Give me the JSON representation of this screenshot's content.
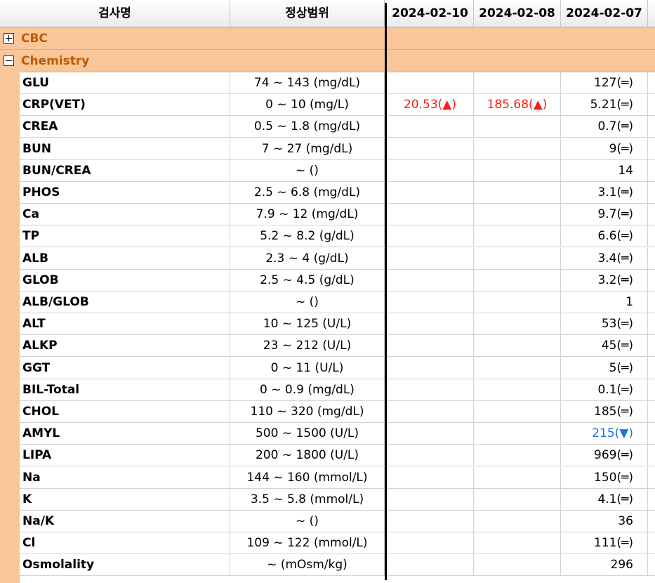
{
  "header": {
    "col_name": "검사명",
    "col_range": "정상범위",
    "dates": [
      "2024-02-10",
      "2024-02-08",
      "2024-02-07"
    ]
  },
  "groups": {
    "cbc": {
      "label": "CBC",
      "expanded": false
    },
    "chemistry": {
      "label": "Chemistry",
      "expanded": true
    }
  },
  "rows": [
    {
      "name": "GLU",
      "range": "74 ~ 143 (mg/dL)",
      "v1": "",
      "v2": "",
      "v3": "127(═)"
    },
    {
      "name": "CRP(VET)",
      "range": "0 ~ 10 (mg/L)",
      "v1": "20.53(▲)",
      "v2": "185.68(▲)",
      "v3": "5.21(═)"
    },
    {
      "name": "CREA",
      "range": "0.5 ~ 1.8 (mg/dL)",
      "v1": "",
      "v2": "",
      "v3": "0.7(═)"
    },
    {
      "name": "BUN",
      "range": "7 ~ 27 (mg/dL)",
      "v1": "",
      "v2": "",
      "v3": "9(═)"
    },
    {
      "name": "BUN/CREA",
      "range": "~ ()",
      "v1": "",
      "v2": "",
      "v3": "14"
    },
    {
      "name": "PHOS",
      "range": "2.5 ~ 6.8 (mg/dL)",
      "v1": "",
      "v2": "",
      "v3": "3.1(═)"
    },
    {
      "name": "Ca",
      "range": "7.9 ~ 12 (mg/dL)",
      "v1": "",
      "v2": "",
      "v3": "9.7(═)"
    },
    {
      "name": "TP",
      "range": "5.2 ~ 8.2 (g/dL)",
      "v1": "",
      "v2": "",
      "v3": "6.6(═)"
    },
    {
      "name": "ALB",
      "range": "2.3 ~ 4 (g/dL)",
      "v1": "",
      "v2": "",
      "v3": "3.4(═)"
    },
    {
      "name": "GLOB",
      "range": "2.5 ~ 4.5 (g/dL)",
      "v1": "",
      "v2": "",
      "v3": "3.2(═)"
    },
    {
      "name": "ALB/GLOB",
      "range": "~ ()",
      "v1": "",
      "v2": "",
      "v3": "1"
    },
    {
      "name": "ALT",
      "range": "10 ~ 125 (U/L)",
      "v1": "",
      "v2": "",
      "v3": "53(═)"
    },
    {
      "name": "ALKP",
      "range": "23 ~ 212 (U/L)",
      "v1": "",
      "v2": "",
      "v3": "45(═)"
    },
    {
      "name": "GGT",
      "range": "0 ~ 11 (U/L)",
      "v1": "",
      "v2": "",
      "v3": "5(═)"
    },
    {
      "name": "BIL-Total",
      "range": "0 ~ 0.9 (mg/dL)",
      "v1": "",
      "v2": "",
      "v3": "0.1(═)"
    },
    {
      "name": "CHOL",
      "range": "110 ~ 320 (mg/dL)",
      "v1": "",
      "v2": "",
      "v3": "185(═)"
    },
    {
      "name": "AMYL",
      "range": "500 ~ 1500 (U/L)",
      "v1": "",
      "v2": "",
      "v3": "215(▼)",
      "v3_low": true
    },
    {
      "name": "LIPA",
      "range": "200 ~ 1800 (U/L)",
      "v1": "",
      "v2": "",
      "v3": "969(═)"
    },
    {
      "name": "Na",
      "range": "144 ~ 160 (mmol/L)",
      "v1": "",
      "v2": "",
      "v3": "150(═)"
    },
    {
      "name": "K",
      "range": "3.5 ~ 5.8 (mmol/L)",
      "v1": "",
      "v2": "",
      "v3": "4.1(═)"
    },
    {
      "name": "Na/K",
      "range": "~ ()",
      "v1": "",
      "v2": "",
      "v3": "36"
    },
    {
      "name": "Cl",
      "range": "109 ~ 122 (mmol/L)",
      "v1": "",
      "v2": "",
      "v3": "111(═)"
    },
    {
      "name": "Osmolality",
      "range": "~ (mOsm/kg)",
      "v1": "",
      "v2": "",
      "v3": "296"
    }
  ],
  "colors": {
    "group_bg": "#f9c69a",
    "group_text": "#c05a00",
    "high": "#ff1a1a",
    "low": "#1e6fe6"
  }
}
